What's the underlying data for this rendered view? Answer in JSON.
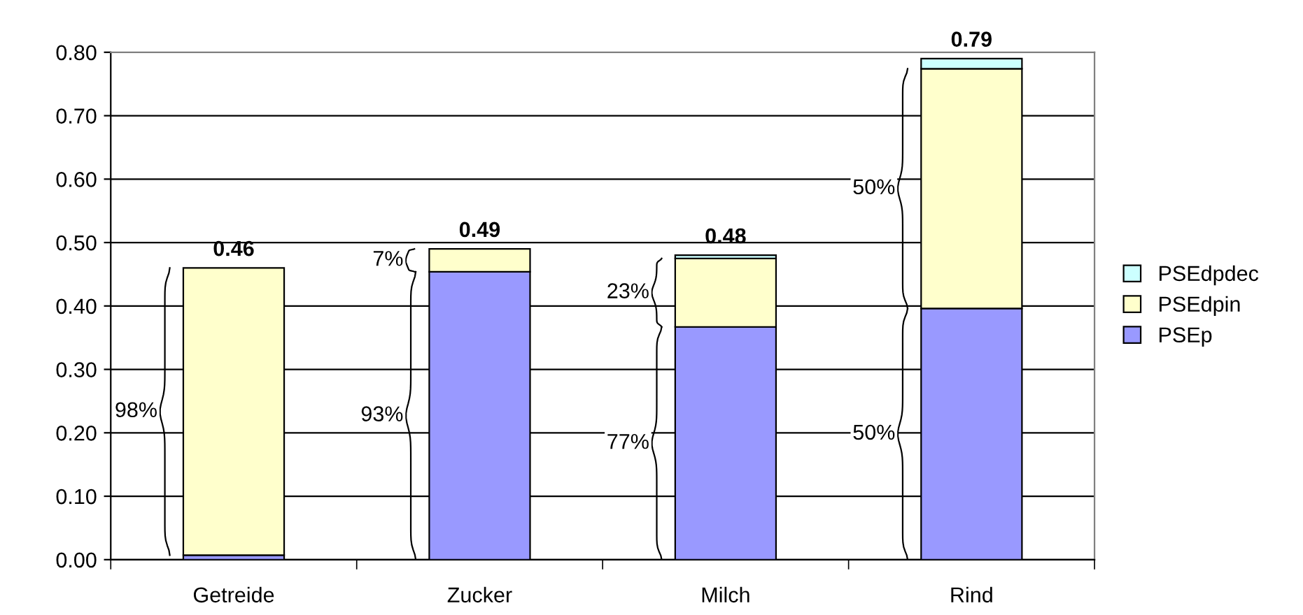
{
  "chart_data": {
    "type": "bar",
    "stacked": true,
    "categories": [
      "Getreide",
      "Zucker",
      "Milch",
      "Rind"
    ],
    "series": [
      {
        "name": "PSEp",
        "color": "#9999ff",
        "values": [
          0.007,
          0.454,
          0.367,
          0.396
        ]
      },
      {
        "name": "PSEdpin",
        "color": "#ffffcc",
        "values": [
          0.453,
          0.036,
          0.108,
          0.378
        ]
      },
      {
        "name": "PSEdpdec",
        "color": "#ccffff",
        "values": [
          0,
          0,
          0.005,
          0.016
        ]
      }
    ],
    "totals": [
      "0.46",
      "0.49",
      "0.48",
      "0.79"
    ],
    "ylim": [
      0,
      0.8
    ],
    "yticks": [
      {
        "value": 0,
        "label": "0.00"
      },
      {
        "value": 0.1,
        "label": "0.10"
      },
      {
        "value": 0.2,
        "label": "0.20"
      },
      {
        "value": 0.3,
        "label": "0.30"
      },
      {
        "value": 0.4,
        "label": "0.40"
      },
      {
        "value": 0.5,
        "label": "0.50"
      },
      {
        "value": 0.6,
        "label": "0.60"
      },
      {
        "value": 0.7,
        "label": "0.70"
      },
      {
        "value": 0.8,
        "label": "0.80"
      }
    ],
    "grid": "y",
    "legend": "right",
    "annotations": [
      "98%",
      "93%",
      "7%",
      "77%",
      "23%",
      "50%",
      "50%"
    ]
  }
}
